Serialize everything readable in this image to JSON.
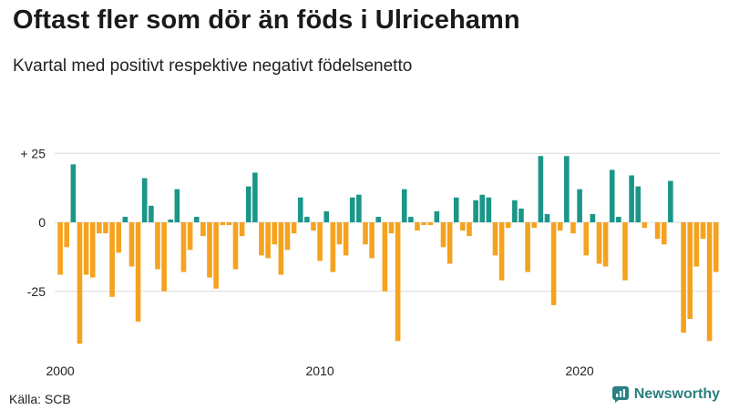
{
  "header": {
    "title": "Oftast fler som dör än föds i Ulricehamn",
    "subtitle": "Kvartal med positivt respektive negativt födelsenetto"
  },
  "footer": {
    "source": "Källa: SCB",
    "brand": "Newsworthy",
    "brand_icon": "newsworthy-logo-icon"
  },
  "colors": {
    "positive": "#1b9688",
    "negative": "#f5a21f",
    "grid": "#dcdcdc",
    "brand": "#2a7f80"
  },
  "chart_data": {
    "type": "bar",
    "title": "Oftast fler som dör än föds i Ulricehamn",
    "subtitle": "Kvartal med positivt respektive negativt födelsenetto",
    "xlabel": "",
    "ylabel": "",
    "ylim": [
      -45,
      25
    ],
    "yticks": [
      25,
      0,
      -25
    ],
    "ytick_labels": [
      "+ 25",
      "0",
      "-25"
    ],
    "xticks": [
      2000,
      2010,
      2020
    ],
    "start_year": 2000,
    "grid": true,
    "values": [
      -19,
      -9,
      21,
      -44,
      -19,
      -20,
      -4,
      -4,
      -27,
      -11,
      2,
      -16,
      -36,
      16,
      6,
      -17,
      -25,
      1,
      12,
      -18,
      -10,
      2,
      -5,
      -20,
      -24,
      -1,
      -1,
      -17,
      -5,
      13,
      18,
      -12,
      -13,
      -8,
      -19,
      -10,
      -4,
      9,
      2,
      -3,
      -14,
      4,
      -18,
      -8,
      -12,
      9,
      10,
      -8,
      -13,
      2,
      -25,
      -4,
      -43,
      12,
      2,
      -3,
      -1,
      -1,
      4,
      -9,
      -15,
      9,
      -3,
      -5,
      8,
      10,
      9,
      -12,
      -21,
      -2,
      8,
      5,
      -18,
      -2,
      24,
      3,
      -30,
      -3,
      24,
      -4,
      12,
      -12,
      3,
      -15,
      -16,
      19,
      2,
      -21,
      17,
      13,
      -2,
      0,
      -6,
      -8,
      15,
      0,
      -40,
      -35,
      -16,
      -6,
      -43,
      -18
    ]
  }
}
